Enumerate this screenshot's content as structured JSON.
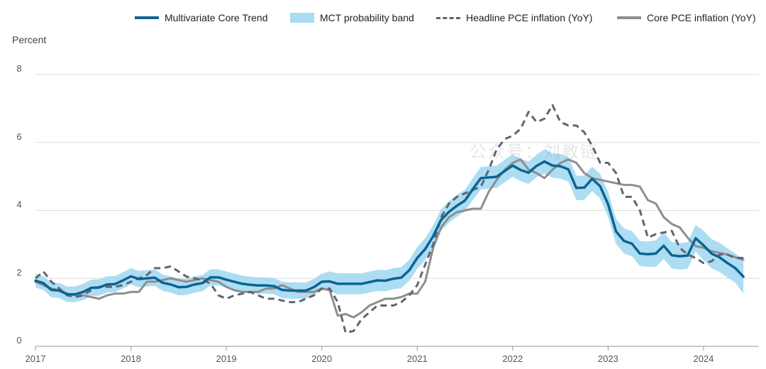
{
  "chart_data": {
    "type": "line",
    "ylabel": "Percent",
    "ylim": [
      0,
      8
    ],
    "yticks": [
      0,
      2,
      4,
      6,
      8
    ],
    "x_range": [
      2017.0,
      2024.58
    ],
    "xticks": [
      2017,
      2018,
      2019,
      2020,
      2021,
      2022,
      2023,
      2024
    ],
    "grid": "horizontal",
    "legend_position": "top",
    "legend": {
      "mct": "Multivariate Core Trend",
      "band": "MCT probability band",
      "headline": "Headline PCE inflation (YoY)",
      "core": "Core PCE inflation (YoY)"
    },
    "colors": {
      "mct": "#0b6394",
      "band": "#a9dbf2",
      "headline": "#606670",
      "core": "#8e8e8e",
      "grid": "#dcdcdc",
      "axis": "#999999"
    },
    "x": [
      2017.0,
      2017.083,
      2017.167,
      2017.25,
      2017.333,
      2017.417,
      2017.5,
      2017.583,
      2017.667,
      2017.75,
      2017.833,
      2017.917,
      2018.0,
      2018.083,
      2018.167,
      2018.25,
      2018.333,
      2018.417,
      2018.5,
      2018.583,
      2018.667,
      2018.75,
      2018.833,
      2018.917,
      2019.0,
      2019.083,
      2019.167,
      2019.25,
      2019.333,
      2019.417,
      2019.5,
      2019.583,
      2019.667,
      2019.75,
      2019.833,
      2019.917,
      2020.0,
      2020.083,
      2020.167,
      2020.25,
      2020.333,
      2020.417,
      2020.5,
      2020.583,
      2020.667,
      2020.75,
      2020.833,
      2020.917,
      2021.0,
      2021.083,
      2021.167,
      2021.25,
      2021.333,
      2021.417,
      2021.5,
      2021.583,
      2021.667,
      2021.75,
      2021.833,
      2021.917,
      2022.0,
      2022.083,
      2022.167,
      2022.25,
      2022.333,
      2022.417,
      2022.5,
      2022.583,
      2022.667,
      2022.75,
      2022.833,
      2022.917,
      2023.0,
      2023.083,
      2023.167,
      2023.25,
      2023.333,
      2023.417,
      2023.5,
      2023.583,
      2023.667,
      2023.75,
      2023.833,
      2023.917,
      2024.0,
      2024.083,
      2024.167,
      2024.25,
      2024.333,
      2024.417
    ],
    "series": [
      {
        "name": "Multivariate Core Trend",
        "key": "mct",
        "values": [
          1.93,
          1.86,
          1.66,
          1.64,
          1.53,
          1.53,
          1.6,
          1.72,
          1.73,
          1.82,
          1.83,
          1.94,
          2.06,
          1.98,
          2.0,
          2.02,
          1.87,
          1.82,
          1.74,
          1.75,
          1.82,
          1.86,
          2.03,
          2.03,
          1.96,
          1.9,
          1.84,
          1.81,
          1.79,
          1.79,
          1.77,
          1.66,
          1.64,
          1.64,
          1.64,
          1.74,
          1.9,
          1.91,
          1.84,
          1.84,
          1.84,
          1.84,
          1.89,
          1.94,
          1.93,
          1.99,
          2.02,
          2.24,
          2.6,
          2.86,
          3.24,
          3.72,
          3.96,
          4.14,
          4.29,
          4.63,
          4.95,
          4.97,
          4.99,
          5.16,
          5.32,
          5.19,
          5.11,
          5.31,
          5.44,
          5.32,
          5.3,
          5.21,
          4.66,
          4.67,
          4.93,
          4.71,
          4.18,
          3.38,
          3.1,
          3.02,
          2.73,
          2.71,
          2.73,
          2.96,
          2.68,
          2.65,
          2.67,
          3.18,
          2.97,
          2.73,
          2.62,
          2.45,
          2.3,
          2.05
        ]
      },
      {
        "name": "MCT band upper",
        "key": "band_hi",
        "values": [
          2.13,
          2.06,
          1.88,
          1.86,
          1.76,
          1.76,
          1.84,
          1.96,
          1.97,
          2.06,
          2.07,
          2.18,
          2.3,
          2.22,
          2.24,
          2.26,
          2.11,
          2.06,
          1.98,
          1.99,
          2.06,
          2.1,
          2.27,
          2.27,
          2.2,
          2.14,
          2.08,
          2.05,
          2.03,
          2.03,
          2.01,
          1.9,
          1.88,
          1.88,
          1.88,
          1.98,
          2.14,
          2.2,
          2.15,
          2.15,
          2.15,
          2.15,
          2.2,
          2.25,
          2.24,
          2.3,
          2.33,
          2.55,
          2.92,
          3.18,
          3.56,
          4.04,
          4.28,
          4.46,
          4.61,
          4.95,
          5.28,
          5.3,
          5.32,
          5.49,
          5.65,
          5.52,
          5.44,
          5.64,
          5.8,
          5.68,
          5.66,
          5.57,
          5.02,
          5.03,
          5.29,
          5.07,
          4.55,
          3.75,
          3.47,
          3.39,
          3.1,
          3.08,
          3.12,
          3.35,
          3.07,
          3.04,
          3.06,
          3.57,
          3.4,
          3.16,
          3.05,
          2.88,
          2.73,
          2.55
        ]
      },
      {
        "name": "MCT band lower",
        "key": "band_lo",
        "values": [
          1.73,
          1.66,
          1.44,
          1.42,
          1.3,
          1.3,
          1.36,
          1.48,
          1.49,
          1.58,
          1.59,
          1.7,
          1.82,
          1.74,
          1.76,
          1.78,
          1.63,
          1.58,
          1.5,
          1.51,
          1.58,
          1.62,
          1.79,
          1.79,
          1.72,
          1.66,
          1.6,
          1.57,
          1.55,
          1.55,
          1.53,
          1.42,
          1.4,
          1.4,
          1.4,
          1.5,
          1.66,
          1.62,
          1.53,
          1.53,
          1.53,
          1.53,
          1.58,
          1.63,
          1.62,
          1.68,
          1.71,
          1.93,
          2.28,
          2.54,
          2.92,
          3.4,
          3.64,
          3.82,
          3.97,
          4.31,
          4.62,
          4.64,
          4.66,
          4.83,
          4.99,
          4.86,
          4.78,
          4.98,
          5.08,
          4.96,
          4.94,
          4.85,
          4.3,
          4.31,
          4.57,
          4.35,
          3.81,
          3.01,
          2.73,
          2.65,
          2.36,
          2.34,
          2.34,
          2.57,
          2.29,
          2.26,
          2.28,
          2.79,
          2.54,
          2.3,
          2.19,
          2.02,
          1.87,
          1.55
        ]
      },
      {
        "name": "Headline PCE inflation (YoY)",
        "key": "headline",
        "values": [
          2.0,
          2.2,
          1.9,
          1.7,
          1.5,
          1.45,
          1.5,
          1.65,
          1.75,
          1.75,
          1.75,
          1.8,
          1.9,
          2.0,
          2.1,
          2.3,
          2.3,
          2.35,
          2.2,
          2.05,
          2.0,
          1.95,
          1.85,
          1.5,
          1.4,
          1.5,
          1.55,
          1.6,
          1.5,
          1.4,
          1.4,
          1.35,
          1.3,
          1.3,
          1.4,
          1.5,
          1.7,
          1.7,
          1.3,
          0.4,
          0.45,
          0.8,
          1.0,
          1.2,
          1.2,
          1.2,
          1.3,
          1.5,
          1.8,
          2.4,
          3.0,
          3.8,
          4.2,
          4.4,
          4.5,
          4.6,
          4.7,
          5.2,
          5.8,
          6.1,
          6.2,
          6.4,
          6.9,
          6.6,
          6.7,
          7.1,
          6.6,
          6.5,
          6.5,
          6.3,
          5.9,
          5.4,
          5.4,
          5.1,
          4.4,
          4.4,
          4.0,
          3.2,
          3.3,
          3.35,
          3.4,
          2.9,
          2.7,
          2.6,
          2.45,
          2.5,
          2.7,
          2.7,
          2.6,
          2.6
        ]
      },
      {
        "name": "Core PCE inflation (YoY)",
        "key": "core",
        "values": [
          1.9,
          1.8,
          1.7,
          1.65,
          1.55,
          1.5,
          1.5,
          1.45,
          1.4,
          1.5,
          1.55,
          1.55,
          1.6,
          1.6,
          1.9,
          1.9,
          1.95,
          2.0,
          1.95,
          1.9,
          1.95,
          2.0,
          1.95,
          1.9,
          1.75,
          1.65,
          1.6,
          1.6,
          1.6,
          1.7,
          1.7,
          1.8,
          1.7,
          1.6,
          1.6,
          1.6,
          1.7,
          1.65,
          0.9,
          0.95,
          0.85,
          1.0,
          1.2,
          1.3,
          1.4,
          1.4,
          1.45,
          1.55,
          1.55,
          1.9,
          2.9,
          3.5,
          3.8,
          3.95,
          4.0,
          4.05,
          4.05,
          4.55,
          4.9,
          5.2,
          5.4,
          5.5,
          5.2,
          5.1,
          4.95,
          5.2,
          5.4,
          5.5,
          5.4,
          5.1,
          4.95,
          4.9,
          4.85,
          4.8,
          4.75,
          4.75,
          4.7,
          4.3,
          4.2,
          3.8,
          3.6,
          3.5,
          3.2,
          2.95,
          2.9,
          2.8,
          2.75,
          2.7,
          2.62,
          2.55
        ]
      }
    ]
  },
  "watermark": "公众号：刘教链"
}
